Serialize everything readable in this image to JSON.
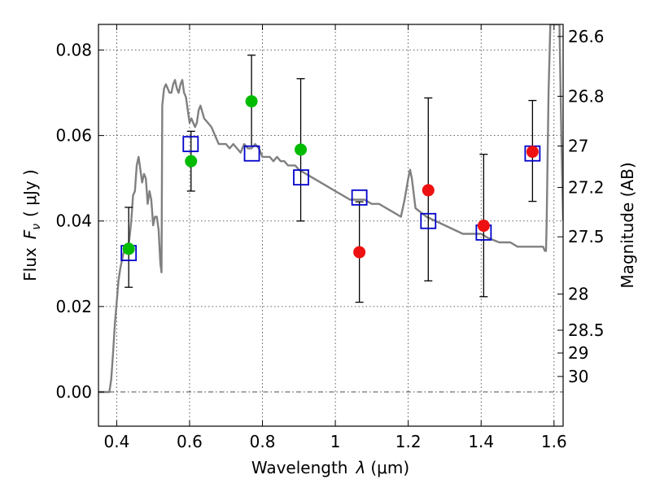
{
  "chart_data": {
    "type": "scatter",
    "xlabel_prefix": "Wavelength",
    "xlabel_symbol": "λ",
    "xlabel_unit": "(μm)",
    "ylabel_prefix": "Flux",
    "ylabel_symbol": "F",
    "ylabel_subscript": "ν",
    "ylabel_unit": "( μJy )",
    "y2label": "Magnitude (AB)",
    "xlim": [
      0.35,
      1.625
    ],
    "ylim": [
      -0.008,
      0.086
    ],
    "x_ticks": [
      0.4,
      0.6,
      0.8,
      1.0,
      1.2,
      1.4,
      1.6
    ],
    "x_tick_labels": [
      "0.4",
      "0.6",
      "0.8",
      "1",
      "1.2",
      "1.4",
      "1.6"
    ],
    "y_ticks": [
      0.0,
      0.02,
      0.04,
      0.06,
      0.08
    ],
    "y_tick_labels": [
      "0.00",
      "0.02",
      "0.04",
      "0.06",
      "0.08"
    ],
    "right_ticks": [
      {
        "label": "26.6",
        "value": 26.6
      },
      {
        "label": "26.8",
        "value": 26.8
      },
      {
        "label": "27",
        "value": 27.0
      },
      {
        "label": "27.2",
        "value": 27.2
      },
      {
        "label": "27.5",
        "value": 27.5
      },
      {
        "label": "28",
        "value": 28.0
      },
      {
        "label": "28.5",
        "value": 28.5
      },
      {
        "label": "29",
        "value": 29.0
      },
      {
        "label": "30",
        "value": 30.0
      }
    ],
    "grid": true,
    "colors": {
      "model": "#808080",
      "model_points": "#0000cc",
      "green_points": "#00bb00",
      "red_points": "#ee1111",
      "errorbars": "#000000"
    },
    "model_sed": {
      "name": "model spectrum",
      "x": [
        0.35,
        0.37,
        0.38,
        0.385,
        0.39,
        0.395,
        0.4,
        0.405,
        0.41,
        0.415,
        0.42,
        0.425,
        0.43,
        0.435,
        0.44,
        0.445,
        0.45,
        0.455,
        0.46,
        0.465,
        0.47,
        0.475,
        0.48,
        0.485,
        0.49,
        0.495,
        0.5,
        0.505,
        0.51,
        0.515,
        0.52,
        0.523,
        0.525,
        0.53,
        0.535,
        0.54,
        0.545,
        0.55,
        0.555,
        0.56,
        0.565,
        0.57,
        0.575,
        0.58,
        0.585,
        0.59,
        0.595,
        0.6,
        0.605,
        0.61,
        0.615,
        0.62,
        0.625,
        0.63,
        0.64,
        0.65,
        0.66,
        0.67,
        0.68,
        0.69,
        0.7,
        0.71,
        0.72,
        0.73,
        0.74,
        0.75,
        0.76,
        0.77,
        0.78,
        0.79,
        0.8,
        0.81,
        0.82,
        0.83,
        0.84,
        0.85,
        0.86,
        0.87,
        0.88,
        0.89,
        0.9,
        0.92,
        0.94,
        0.96,
        0.98,
        1.0,
        1.02,
        1.04,
        1.06,
        1.08,
        1.1,
        1.12,
        1.14,
        1.16,
        1.18,
        1.19,
        1.2,
        1.205,
        1.21,
        1.22,
        1.25,
        1.3,
        1.35,
        1.4,
        1.42,
        1.45,
        1.48,
        1.5,
        1.52,
        1.54,
        1.56,
        1.57,
        1.575,
        1.578,
        1.58,
        1.585,
        1.59,
        1.595,
        1.6,
        1.605,
        1.61,
        1.615,
        1.62,
        1.625
      ],
      "y": [
        0.0,
        0.0,
        0.0,
        0.003,
        0.009,
        0.016,
        0.021,
        0.026,
        0.029,
        0.031,
        0.033,
        0.034,
        0.033,
        0.036,
        0.04,
        0.046,
        0.047,
        0.053,
        0.055,
        0.052,
        0.049,
        0.051,
        0.05,
        0.044,
        0.047,
        0.045,
        0.039,
        0.041,
        0.041,
        0.038,
        0.03,
        0.028,
        0.067,
        0.071,
        0.072,
        0.071,
        0.07,
        0.07,
        0.072,
        0.073,
        0.071,
        0.07,
        0.072,
        0.073,
        0.07,
        0.069,
        0.066,
        0.063,
        0.064,
        0.063,
        0.062,
        0.063,
        0.066,
        0.067,
        0.064,
        0.063,
        0.062,
        0.06,
        0.058,
        0.058,
        0.058,
        0.057,
        0.058,
        0.057,
        0.056,
        0.058,
        0.057,
        0.057,
        0.058,
        0.057,
        0.055,
        0.055,
        0.055,
        0.054,
        0.055,
        0.054,
        0.054,
        0.053,
        0.053,
        0.053,
        0.052,
        0.051,
        0.05,
        0.049,
        0.048,
        0.047,
        0.046,
        0.045,
        0.045,
        0.045,
        0.044,
        0.044,
        0.043,
        0.042,
        0.041,
        0.045,
        0.05,
        0.052,
        0.05,
        0.043,
        0.041,
        0.039,
        0.037,
        0.037,
        0.036,
        0.035,
        0.035,
        0.034,
        0.034,
        0.034,
        0.034,
        0.034,
        0.033,
        0.033,
        0.04,
        0.07,
        0.086,
        0.086,
        0.086,
        0.086,
        0.086,
        0.086,
        0.06,
        0.04
      ]
    },
    "series": [
      {
        "name": "model fluxes",
        "marker": "open-square",
        "x": [
          0.433,
          0.603,
          0.771,
          0.906,
          1.066,
          1.255,
          1.407,
          1.541
        ],
        "y": [
          0.0325,
          0.058,
          0.0558,
          0.0502,
          0.0455,
          0.04,
          0.0373,
          0.0558
        ]
      },
      {
        "name": "green points",
        "marker": "filled-circle",
        "x": [
          0.433,
          0.604,
          0.77,
          0.905
        ],
        "y": [
          0.0335,
          0.054,
          0.068,
          0.0567
        ],
        "yerr_low": [
          0.0245,
          0.047,
          0.0575,
          0.04
        ],
        "yerr_high": [
          0.0432,
          0.061,
          0.0788,
          0.0733
        ]
      },
      {
        "name": "red points",
        "marker": "filled-circle",
        "x": [
          1.066,
          1.255,
          1.407,
          1.541
        ],
        "y": [
          0.0327,
          0.0472,
          0.0389,
          0.0562
        ],
        "yerr_low": [
          0.021,
          0.026,
          0.0223,
          0.0446
        ],
        "yerr_high": [
          0.0445,
          0.0688,
          0.0556,
          0.0682
        ]
      }
    ]
  }
}
